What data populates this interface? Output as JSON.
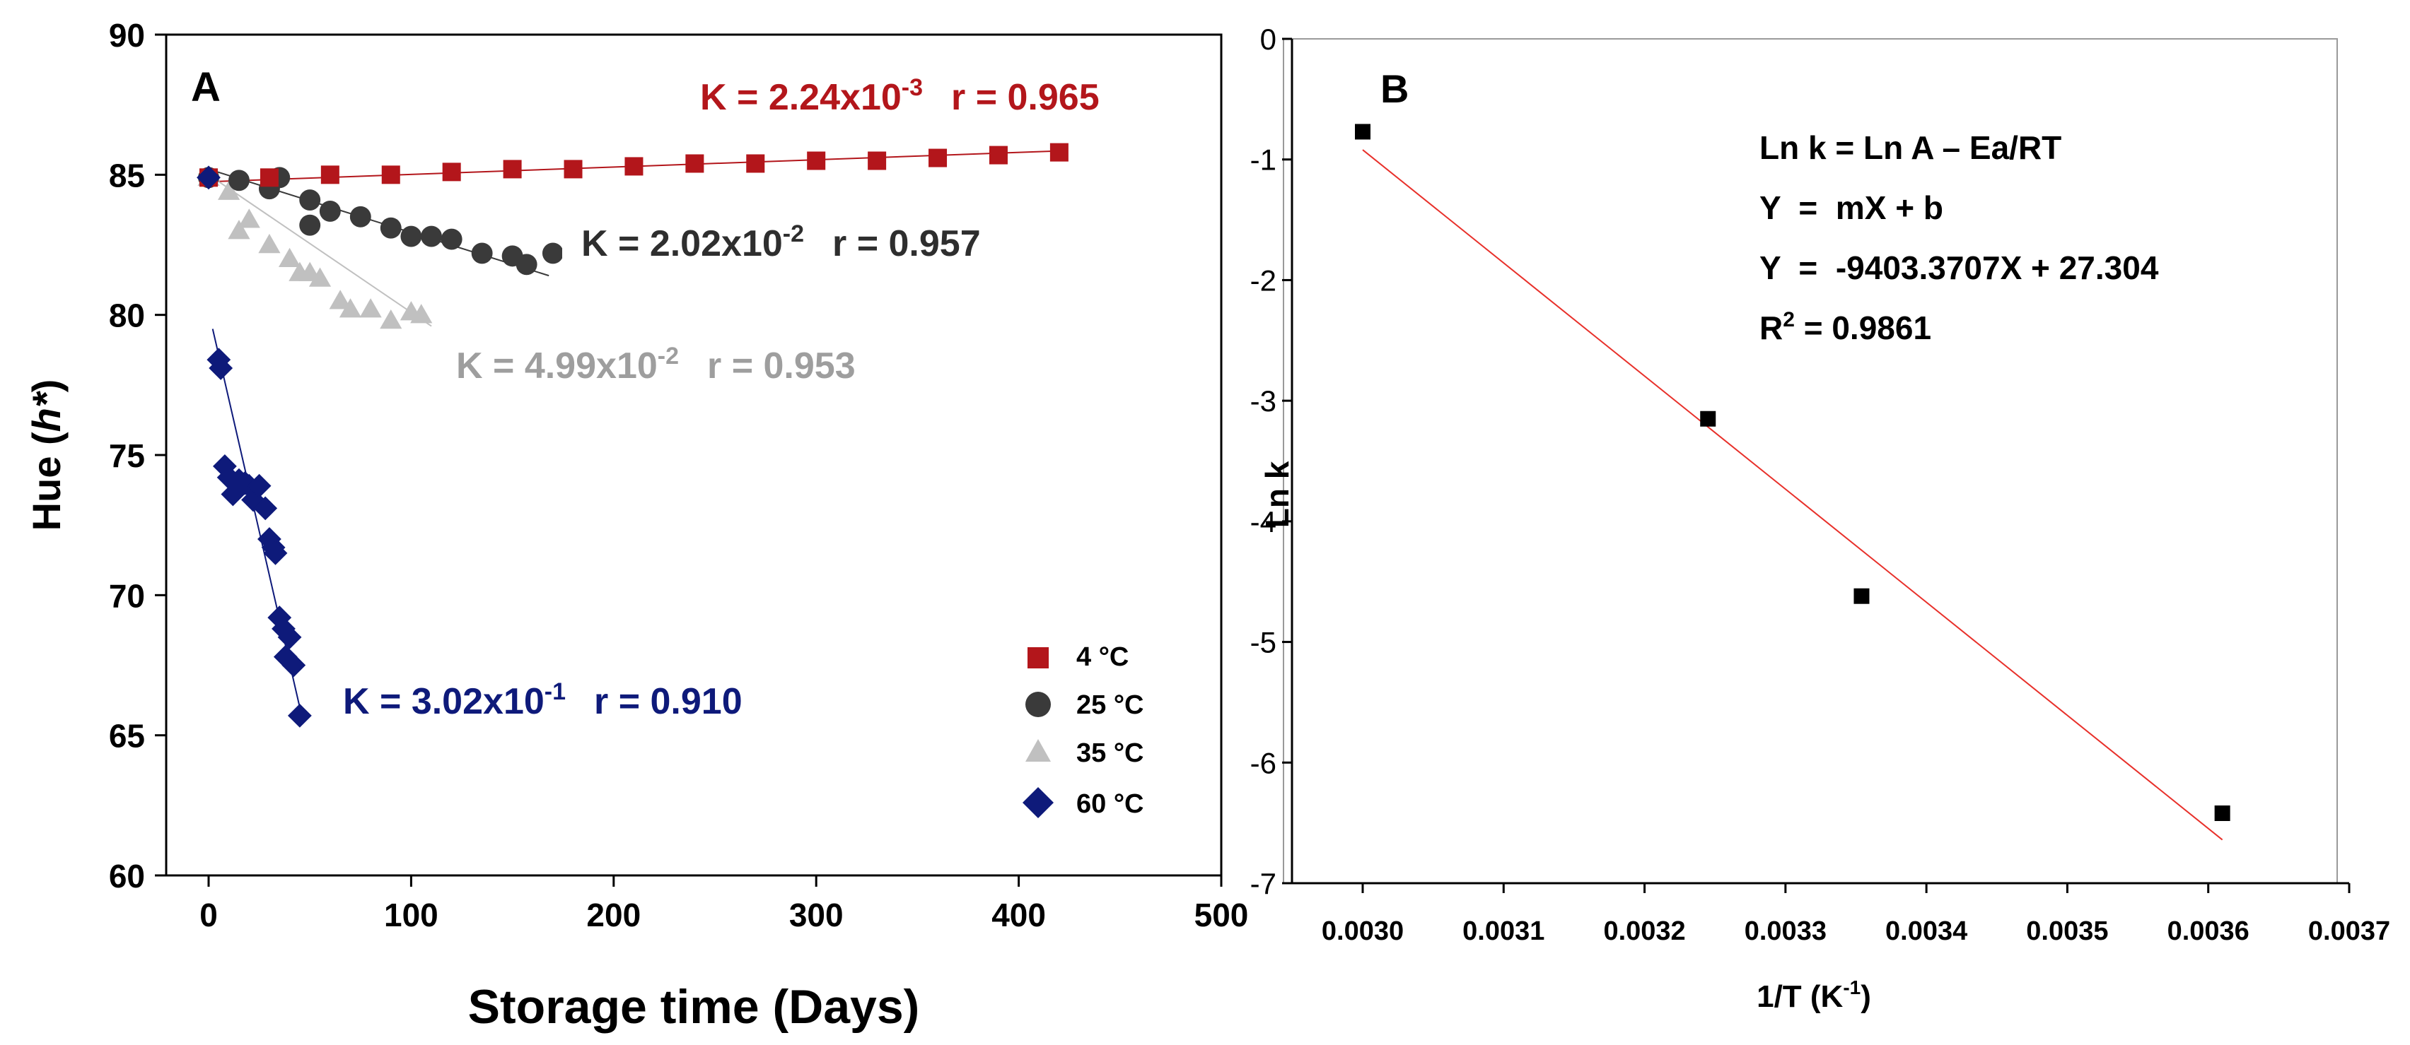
{
  "chart_data": [
    {
      "panel_label": "A",
      "type": "scatter",
      "xlabel": "Storage time (Days)",
      "ylabel": "Hue (h*)",
      "ylabel_parts": [
        "Hue (",
        "h*",
        ")"
      ],
      "xlim": [
        0,
        500
      ],
      "ylim": [
        60,
        90
      ],
      "xticks": [
        0,
        100,
        200,
        300,
        400,
        500
      ],
      "yticks": [
        60,
        65,
        70,
        75,
        80,
        85,
        90
      ],
      "x_tick_labels": [
        "0",
        "100",
        "200",
        "300",
        "400",
        "500"
      ],
      "y_tick_labels": [
        "60",
        "65",
        "70",
        "75",
        "80",
        "85",
        "90"
      ],
      "legend_position": "bottom-right",
      "series": [
        {
          "name": "4 °C",
          "marker": "square",
          "color": "#B3161B",
          "x": [
            0,
            30,
            60,
            90,
            120,
            150,
            180,
            210,
            240,
            270,
            300,
            330,
            360,
            390,
            420
          ],
          "y": [
            84.9,
            84.9,
            85.0,
            85.0,
            85.1,
            85.2,
            85.2,
            85.3,
            85.4,
            85.4,
            85.5,
            85.5,
            85.6,
            85.7,
            85.8
          ],
          "fit": {
            "x": [
              0,
              420
            ],
            "y": [
              84.75,
              85.85
            ]
          },
          "annotation": {
            "base": "K = 2.24x10",
            "exp": "-3",
            "r": "r = 0.965"
          }
        },
        {
          "name": "25 °C",
          "marker": "circle",
          "color": "#3A3A3A",
          "x": [
            0,
            15,
            30,
            35,
            50,
            50,
            60,
            75,
            90,
            100,
            110,
            120,
            135,
            150,
            157,
            170
          ],
          "y": [
            84.9,
            84.8,
            84.5,
            84.9,
            84.1,
            83.2,
            83.7,
            83.5,
            83.1,
            82.8,
            82.8,
            82.7,
            82.2,
            82.1,
            81.8,
            82.2
          ],
          "fit": {
            "x": [
              0,
              168
            ],
            "y": [
              85.2,
              81.4
            ]
          },
          "annotation": {
            "base": "K = 2.02x10",
            "exp": "-2",
            "r": "r = 0.957"
          }
        },
        {
          "name": "35 °C",
          "marker": "triangle",
          "color": "#C0C0C0",
          "x": [
            0,
            10,
            15,
            20,
            30,
            40,
            45,
            50,
            55,
            65,
            70,
            80,
            90,
            100,
            105
          ],
          "y": [
            84.9,
            84.4,
            83.0,
            83.4,
            82.5,
            82.0,
            81.5,
            81.5,
            81.3,
            80.5,
            80.2,
            80.2,
            79.8,
            80.1,
            80.0
          ],
          "fit": {
            "x": [
              0,
              110
            ],
            "y": [
              85.0,
              79.6
            ]
          },
          "annotation": {
            "base": "K = 4.99x10",
            "exp": "-2",
            "r": "r = 0.953"
          }
        },
        {
          "name": "60 °C",
          "marker": "diamond",
          "color": "#0E1A7A",
          "x": [
            0,
            5,
            6,
            8,
            10,
            12,
            15,
            18,
            20,
            22,
            25,
            28,
            30,
            32,
            33,
            35,
            37,
            38,
            40,
            42,
            45
          ],
          "y": [
            84.9,
            78.4,
            78.1,
            74.6,
            74.2,
            73.6,
            74.1,
            74.0,
            73.9,
            73.4,
            73.9,
            73.1,
            72.0,
            71.7,
            71.5,
            69.2,
            68.8,
            67.8,
            68.5,
            67.5,
            65.7
          ],
          "fit": {
            "x": [
              2,
              45
            ],
            "y": [
              79.5,
              66.0
            ]
          },
          "annotation": {
            "base": "K = 3.02x10",
            "exp": "-1",
            "r": "r = 0.910"
          }
        }
      ]
    },
    {
      "panel_label": "B",
      "type": "scatter",
      "xlabel_base": "1/T (K",
      "xlabel_exp": "-1",
      "xlabel_end": ")",
      "ylabel": "Ln k",
      "xlim": [
        0.00295,
        0.0037
      ],
      "ylim": [
        -7,
        0
      ],
      "xticks": [
        0.003,
        0.0031,
        0.0032,
        0.0033,
        0.0034,
        0.0035,
        0.0036,
        0.0037
      ],
      "x_tick_labels": [
        "0.0030",
        "0.0031",
        "0.0032",
        "0.0033",
        "0.0034",
        "0.0035",
        "0.0036",
        "0.0037"
      ],
      "yticks": [
        0,
        -1,
        -2,
        -3,
        -4,
        -5,
        -6,
        -7
      ],
      "y_tick_labels": [
        "0",
        "-1",
        "-2",
        "-3",
        "-4",
        "-5",
        "-6",
        "-7"
      ],
      "series": [
        {
          "name": "Ln k",
          "marker": "square",
          "color": "#000000",
          "x": [
            0.003,
            0.003245,
            0.003354,
            0.00361
          ],
          "y": [
            -0.77,
            -3.15,
            -4.62,
            -6.42
          ]
        }
      ],
      "fit": {
        "color": "#E8302A",
        "x": [
          0.003,
          0.00361
        ],
        "y": [
          -0.92,
          -6.64
        ]
      },
      "equations": {
        "line1": "Ln k = Ln A – Ea/RT",
        "line2": "Y  =  mX + b",
        "line3": "Y  =  -9403.3707X + 27.304",
        "line4_base": "R",
        "line4_exp": "2",
        "line4_end": " = 0.9861"
      }
    }
  ]
}
